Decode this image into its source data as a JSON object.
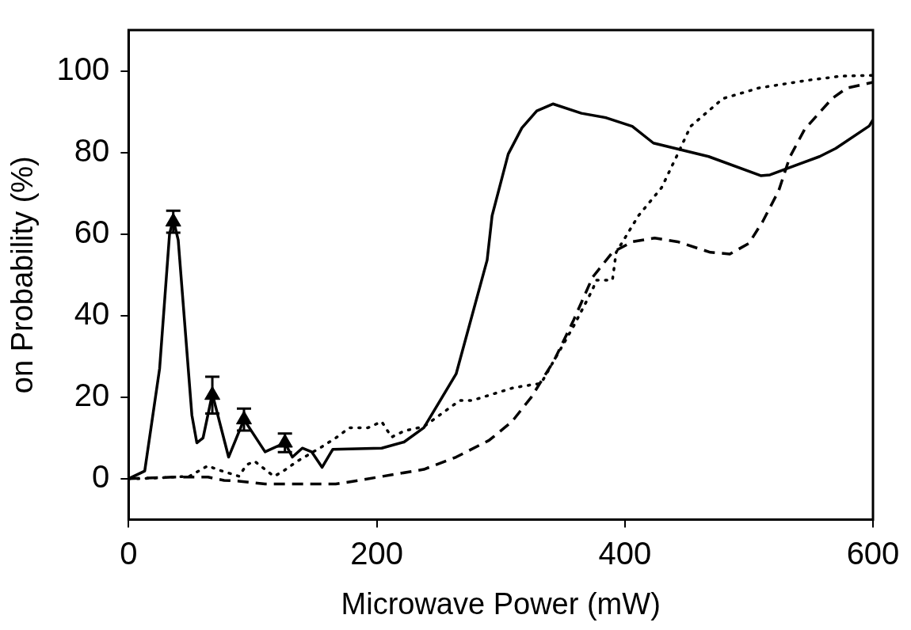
{
  "chart_data": {
    "type": "line",
    "xlabel": "Microwave Power (mW)",
    "ylabel": "on Probability (%)",
    "xlim": [
      0,
      600
    ],
    "ylim": [
      -10,
      110
    ],
    "xticks": [
      0,
      200,
      400,
      600
    ],
    "yticks": [
      0,
      20,
      40,
      60,
      80,
      100
    ],
    "grid": false,
    "legend": false,
    "series": [
      {
        "type": "line",
        "color": "#000000",
        "line_style": "solid",
        "marker": "none",
        "x": [
          0,
          13,
          25,
          33,
          36,
          40,
          51,
          55,
          60,
          67.5,
          80.6,
          93,
          110,
          126,
          132,
          140,
          147.5,
          156,
          162.6,
          164.6,
          204,
          222,
          238,
          264,
          289,
          293,
          306,
          317,
          329,
          342,
          365,
          385,
          406,
          423,
          467.5,
          509.5,
          517,
          557,
          570,
          597,
          600
        ],
        "values": [
          0,
          1.9,
          27,
          60,
          63.6,
          58.5,
          15.6,
          8.8,
          10,
          20.8,
          5.3,
          14.5,
          6.6,
          8.8,
          5.3,
          7.5,
          6.6,
          2.8,
          6.2,
          7.2,
          7.5,
          9,
          12.5,
          25.7,
          53.6,
          64.5,
          79.6,
          86,
          90.2,
          91.9,
          89.6,
          88.5,
          86.4,
          82.3,
          79,
          74.3,
          74.5,
          79,
          81,
          86.5,
          88
        ]
      },
      {
        "type": "line",
        "color": "#000000",
        "line_style": "dotted",
        "marker": "none",
        "x": [
          0,
          8,
          36,
          49,
          64,
          71,
          89,
          95,
          101.6,
          117,
          123,
          136,
          154,
          167,
          178,
          193,
          204,
          212,
          222,
          238,
          267,
          277,
          310,
          332.5,
          341.6,
          358.7,
          374,
          377,
          390,
          393,
          411,
          429.5,
          442.6,
          453,
          479,
          508,
          547.5,
          574,
          600
        ],
        "values": [
          0,
          0,
          0.4,
          0.6,
          3.2,
          2.3,
          0.6,
          3.4,
          4.3,
          0.6,
          1.5,
          4.3,
          7.5,
          10,
          12.5,
          12.5,
          14,
          10.2,
          11.7,
          12.8,
          19.2,
          19.2,
          22.3,
          23.4,
          28.3,
          37.4,
          46.4,
          48.7,
          48.7,
          55.5,
          64.5,
          71.3,
          79.6,
          86.4,
          93.2,
          95.8,
          97.7,
          98.7,
          98.9
        ]
      },
      {
        "type": "line",
        "color": "#000000",
        "line_style": "dashed",
        "marker": "none",
        "x": [
          0,
          36,
          64,
          77,
          89,
          110,
          167,
          185.6,
          238,
          264,
          290.5,
          309,
          324.6,
          343,
          358.7,
          374,
          390,
          406,
          424,
          442.6,
          469,
          484.6,
          500,
          511,
          524,
          533,
          545,
          567,
          579,
          600
        ],
        "values": [
          0,
          0.4,
          0.4,
          -0.4,
          -0.6,
          -1.3,
          -1.3,
          -0.4,
          2.3,
          5.3,
          9.4,
          14,
          20,
          29,
          38.9,
          49.4,
          55.5,
          58.1,
          59,
          58.1,
          55.5,
          55.1,
          57.7,
          63,
          70.6,
          78.9,
          85.7,
          93.2,
          95.8,
          97.2
        ]
      },
      {
        "type": "scatter",
        "color": "#000000",
        "marker": "triangle",
        "x": [
          36,
          67.5,
          93,
          126
        ],
        "values": [
          63,
          20.5,
          14.5,
          8.8
        ],
        "errors": [
          2.7,
          4.5,
          2.7,
          2.3
        ]
      }
    ]
  }
}
